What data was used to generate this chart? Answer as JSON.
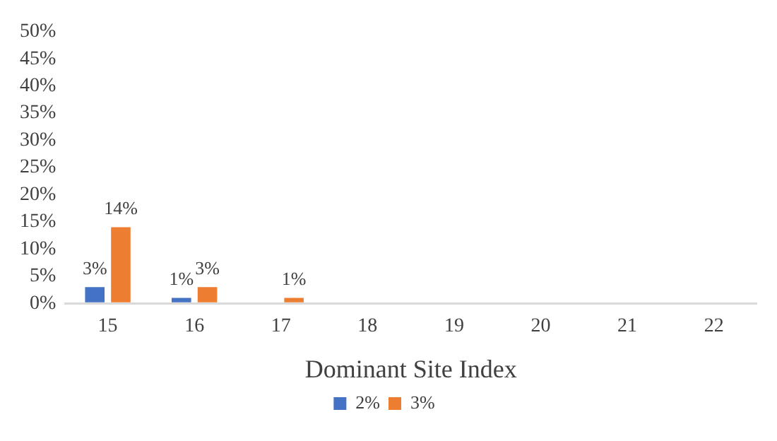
{
  "chart_data": {
    "type": "bar",
    "xlabel": "Dominant Site Index",
    "categories": [
      "15",
      "16",
      "17",
      "18",
      "19",
      "20",
      "21",
      "22"
    ],
    "series": [
      {
        "name": "2%",
        "color": "#4472c4",
        "values": [
          3,
          1,
          0,
          null,
          null,
          0,
          0,
          0
        ],
        "value_labels": [
          "3%",
          "1%",
          null,
          null,
          null,
          null,
          null,
          null
        ]
      },
      {
        "name": "3%",
        "color": "#ed7d31",
        "values": [
          14,
          3,
          1,
          0,
          0,
          0,
          0,
          0
        ],
        "value_labels": [
          "14%",
          "3%",
          "1%",
          null,
          null,
          null,
          null,
          null
        ]
      }
    ],
    "ylim": [
      0,
      50
    ],
    "yticks": [
      {
        "value": 0,
        "label": "0%"
      },
      {
        "value": 5,
        "label": "5%"
      },
      {
        "value": 10,
        "label": "10%"
      },
      {
        "value": 15,
        "label": "15%"
      },
      {
        "value": 20,
        "label": "20%"
      },
      {
        "value": 25,
        "label": "25%"
      },
      {
        "value": 30,
        "label": "30%"
      },
      {
        "value": 35,
        "label": "35%"
      },
      {
        "value": 40,
        "label": "40%"
      },
      {
        "value": 45,
        "label": "45%"
      },
      {
        "value": 50,
        "label": "50%"
      }
    ],
    "grid": false,
    "legend": "bottom"
  }
}
